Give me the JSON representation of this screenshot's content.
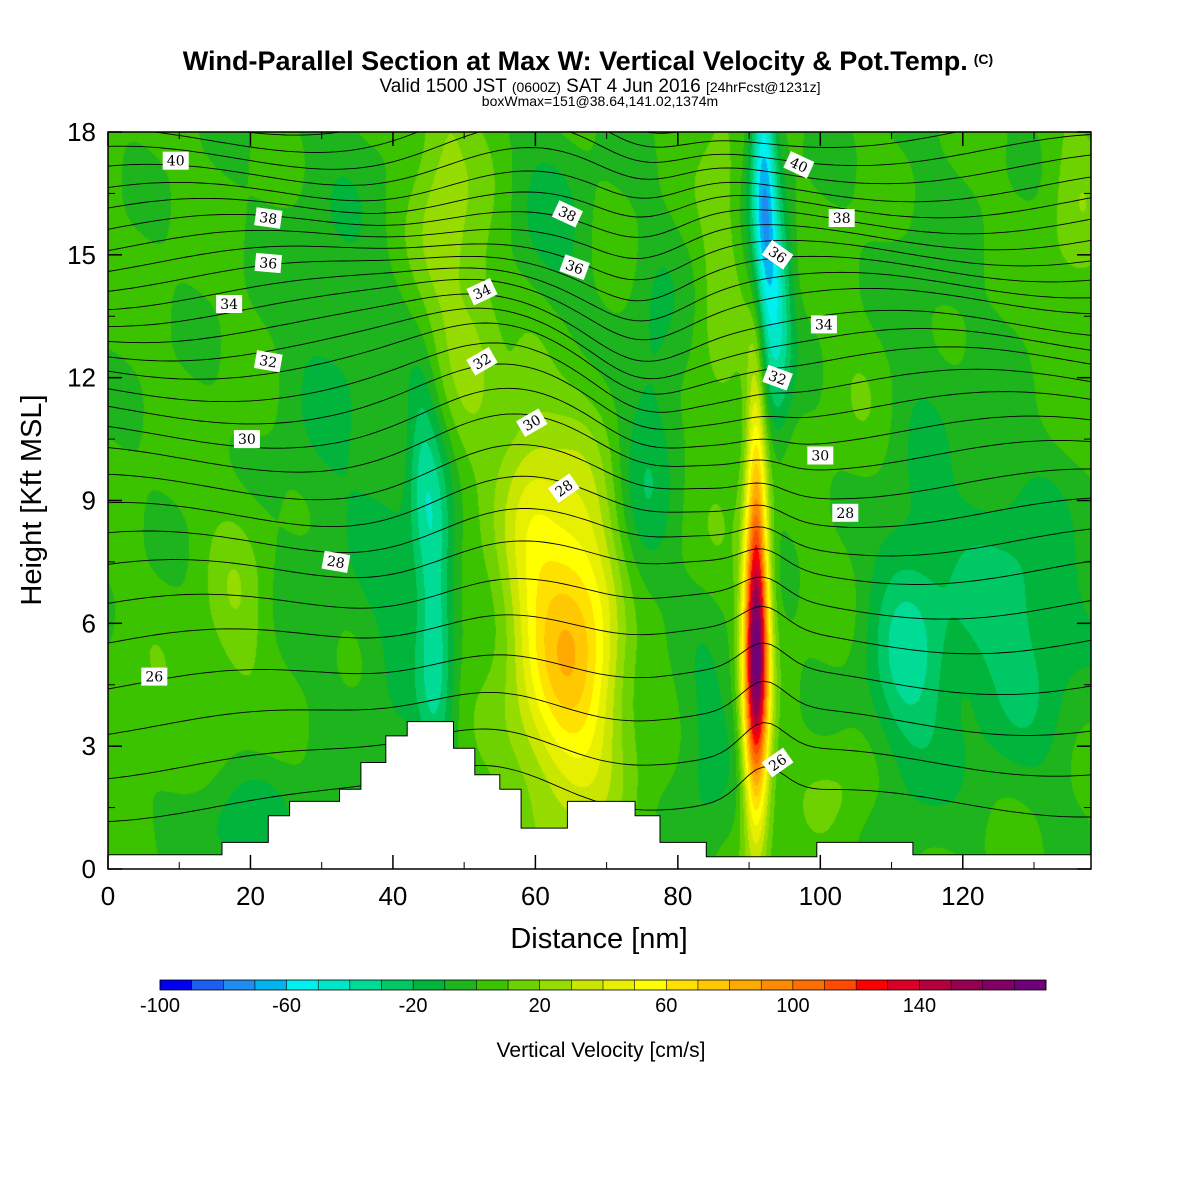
{
  "title": {
    "line1": "Wind-Parallel Section at Max W: Vertical Velocity & Pot.Temp.",
    "line1_tag": "(C)",
    "line2_a": "Valid 1500 JST ",
    "line2_b": "(0600Z)",
    "line2_c": " SAT 4 Jun 2016 ",
    "line2_d": "[24hrFcst@1231z]",
    "line3": "boxWmax=151@38.64,141.02,1374m"
  },
  "colors": {
    "contour": "#000000",
    "terrain": "#ffffff",
    "levels": [
      "#0000f0",
      "#1e5ef0",
      "#1e8cf0",
      "#00b4f0",
      "#00f0f0",
      "#00e6c8",
      "#00dc96",
      "#00c864",
      "#00b43c",
      "#1eb41e",
      "#3cc300",
      "#6ed200",
      "#96dc00",
      "#c8e600",
      "#e6f000",
      "#ffff00",
      "#ffe100",
      "#ffc800",
      "#ffaa00",
      "#ff8c00",
      "#ff6e00",
      "#ff4b00",
      "#ff0000",
      "#dc0028",
      "#b4003c",
      "#960050",
      "#820064",
      "#6e0078"
    ]
  },
  "chart_data": {
    "type": "heatmap",
    "xlabel": "Distance [nm]",
    "ylabel": "Height [Kft MSL]",
    "xlim": [
      0,
      138
    ],
    "ylim": [
      0,
      18
    ],
    "xticks": [
      0,
      20,
      40,
      60,
      80,
      100,
      120
    ],
    "yticks": [
      0,
      3,
      6,
      9,
      12,
      15,
      18
    ],
    "colorbar": {
      "label": "Vertical Velocity [cm/s]",
      "min": -100,
      "max": 160,
      "step": 10,
      "ticks": [
        -100,
        -60,
        -20,
        20,
        60,
        100,
        140
      ]
    },
    "features": [
      {
        "x": 91,
        "y": 5,
        "sx": 1.3,
        "sy": 2.6,
        "w": 152
      },
      {
        "x": 91,
        "y": 9.5,
        "sx": 1.0,
        "sy": 3.5,
        "w": 45
      },
      {
        "x": 65,
        "y": 5.5,
        "sx": 5.5,
        "sy": 3.0,
        "w": 75
      },
      {
        "x": 59,
        "y": 9.5,
        "sx": 3.0,
        "sy": 2.5,
        "w": 20
      },
      {
        "x": 47,
        "y": 16,
        "sx": 3.0,
        "sy": 3.5,
        "w": 24
      },
      {
        "x": 52,
        "y": 13,
        "sx": 2.5,
        "sy": 2.5,
        "w": 14
      },
      {
        "x": 86,
        "y": 15,
        "sx": 2.0,
        "sy": 4.0,
        "w": 14
      },
      {
        "x": 92,
        "y": 16.5,
        "sx": 1.3,
        "sy": 2.5,
        "w": -68
      },
      {
        "x": 94,
        "y": 13.5,
        "sx": 1.5,
        "sy": 2.0,
        "w": -40
      },
      {
        "x": 46,
        "y": 6.5,
        "sx": 1.8,
        "sy": 3.0,
        "w": -40
      },
      {
        "x": 44,
        "y": 10,
        "sx": 1.5,
        "sy": 2.0,
        "w": -22
      },
      {
        "x": 74,
        "y": 8,
        "sx": 3.0,
        "sy": 2.5,
        "w": -20
      },
      {
        "x": 77,
        "y": 12,
        "sx": 2.5,
        "sy": 2.5,
        "w": -14
      },
      {
        "x": 62,
        "y": 15.5,
        "sx": 4.0,
        "sy": 2.0,
        "w": -15
      },
      {
        "x": 84,
        "y": 3,
        "sx": 3.0,
        "sy": 1.8,
        "w": -18
      },
      {
        "x": 112,
        "y": 5,
        "sx": 4.0,
        "sy": 2.5,
        "w": -30
      },
      {
        "x": 127,
        "y": 6,
        "sx": 7.0,
        "sy": 2.5,
        "w": -28
      },
      {
        "x": 17,
        "y": 1.3,
        "sx": 7.0,
        "sy": 1.0,
        "w": -18
      },
      {
        "x": 32,
        "y": 12,
        "sx": 6.0,
        "sy": 5.0,
        "w": -12
      },
      {
        "x": 40,
        "y": 6,
        "sx": 3.0,
        "sy": 3.0,
        "w": -12
      },
      {
        "x": 112,
        "y": 12,
        "sx": 6.0,
        "sy": 4.0,
        "w": -10
      },
      {
        "x": 18,
        "y": 6.5,
        "sx": 3.0,
        "sy": 2.0,
        "w": 14
      },
      {
        "x": 107,
        "y": 11.5,
        "sx": 4.0,
        "sy": 3.0,
        "w": 10
      },
      {
        "x": 136,
        "y": 16,
        "sx": 3.0,
        "sy": 2.0,
        "w": 14
      },
      {
        "x": 8,
        "y": 3,
        "sx": 6.0,
        "sy": 1.5,
        "w": 8
      },
      {
        "x": 104,
        "y": 2,
        "sx": 4.0,
        "sy": 1.0,
        "w": 10
      }
    ],
    "theta": {
      "levels": [
        25,
        25.5,
        26,
        26.5,
        27,
        27.5,
        28,
        28.5,
        29,
        29.5,
        30,
        30.5,
        31,
        31.5,
        32,
        32.5,
        33,
        33.5,
        34,
        34.5,
        35,
        35.5,
        36,
        36.5,
        37,
        37.5,
        38,
        38.5,
        39,
        39.5,
        40,
        40.5,
        41
      ],
      "base_kft": [
        3.5,
        5.5,
        7.2,
        8.6,
        10.0,
        11.2,
        12.3,
        13.2,
        14.0,
        14.8,
        15.6,
        16.4,
        17.3,
        18.2
      ],
      "base_theta": [
        26,
        27,
        28,
        29,
        30,
        31,
        32,
        33,
        34,
        35,
        36,
        37,
        38,
        39
      ],
      "labels": [
        {
          "text": "40",
          "x": 9.5,
          "y": 17.3,
          "rot": 0
        },
        {
          "text": "38",
          "x": 22.5,
          "y": 15.9,
          "rot": 8
        },
        {
          "text": "36",
          "x": 22.5,
          "y": 14.8,
          "rot": 5
        },
        {
          "text": "34",
          "x": 17,
          "y": 13.8,
          "rot": 0
        },
        {
          "text": "32",
          "x": 22.5,
          "y": 12.4,
          "rot": 10
        },
        {
          "text": "30",
          "x": 19.5,
          "y": 10.5,
          "rot": 0
        },
        {
          "text": "28",
          "x": 32,
          "y": 7.5,
          "rot": 10
        },
        {
          "text": "26",
          "x": 6.5,
          "y": 4.7,
          "rot": 0
        },
        {
          "text": "38",
          "x": 64.5,
          "y": 16,
          "rot": 25
        },
        {
          "text": "36",
          "x": 65.5,
          "y": 14.7,
          "rot": 20
        },
        {
          "text": "34",
          "x": 52.5,
          "y": 14.1,
          "rot": -25
        },
        {
          "text": "32",
          "x": 52.5,
          "y": 12.4,
          "rot": -30
        },
        {
          "text": "30",
          "x": 59.5,
          "y": 10.9,
          "rot": -30
        },
        {
          "text": "28",
          "x": 64,
          "y": 9.3,
          "rot": -35
        },
        {
          "text": "40",
          "x": 97,
          "y": 17.2,
          "rot": 25
        },
        {
          "text": "38",
          "x": 103,
          "y": 15.9,
          "rot": 0
        },
        {
          "text": "36",
          "x": 94,
          "y": 15,
          "rot": 35
        },
        {
          "text": "34",
          "x": 100.5,
          "y": 13.3,
          "rot": 0
        },
        {
          "text": "32",
          "x": 94,
          "y": 12,
          "rot": 20
        },
        {
          "text": "30",
          "x": 100,
          "y": 10.1,
          "rot": 0
        },
        {
          "text": "28",
          "x": 103.5,
          "y": 8.7,
          "rot": 0
        },
        {
          "text": "26",
          "x": 94,
          "y": 2.6,
          "rot": -35
        }
      ]
    },
    "terrain_kft": [
      [
        0,
        0.35
      ],
      [
        16,
        0.35
      ],
      [
        16,
        0.65
      ],
      [
        22.5,
        0.65
      ],
      [
        22.5,
        1.3
      ],
      [
        25.5,
        1.3
      ],
      [
        25.5,
        1.65
      ],
      [
        32.5,
        1.65
      ],
      [
        32.5,
        1.95
      ],
      [
        35.5,
        1.95
      ],
      [
        35.5,
        2.6
      ],
      [
        39,
        2.6
      ],
      [
        39,
        3.25
      ],
      [
        42,
        3.25
      ],
      [
        42,
        3.6
      ],
      [
        48.5,
        3.6
      ],
      [
        48.5,
        2.95
      ],
      [
        51.5,
        2.95
      ],
      [
        51.5,
        2.3
      ],
      [
        55,
        2.3
      ],
      [
        55,
        1.95
      ],
      [
        58,
        1.95
      ],
      [
        58,
        1.0
      ],
      [
        64.5,
        1.0
      ],
      [
        64.5,
        1.65
      ],
      [
        74,
        1.65
      ],
      [
        74,
        1.3
      ],
      [
        77.5,
        1.3
      ],
      [
        77.5,
        0.65
      ],
      [
        84,
        0.65
      ],
      [
        84,
        0.3
      ],
      [
        99.5,
        0.3
      ],
      [
        99.5,
        0.65
      ],
      [
        113,
        0.65
      ],
      [
        113,
        0.35
      ],
      [
        138,
        0.35
      ]
    ]
  }
}
